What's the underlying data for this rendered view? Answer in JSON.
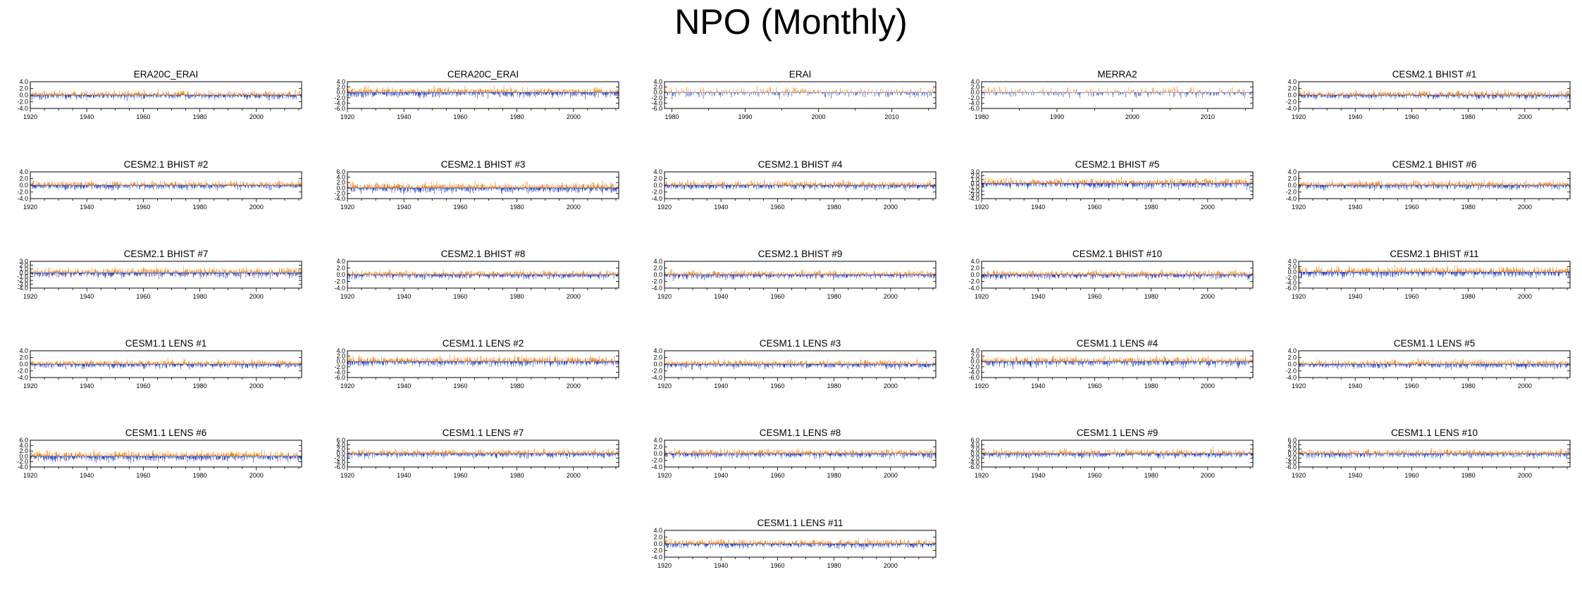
{
  "title": "NPO (Monthly)",
  "colors": {
    "positive": "#f07800",
    "negative": "#1030d0",
    "frame": "#000000",
    "zero_line": "#555555"
  },
  "chart_data": [
    {
      "type": "bar",
      "title": "ERA20C_ERAI",
      "x_range": [
        1920,
        2015
      ],
      "x_ticks": [
        "1920",
        "1940",
        "1960",
        "1980",
        "2000"
      ],
      "ylim": [
        -4,
        4
      ],
      "y_ticks": [
        "4.0",
        "2.0",
        "0.0",
        "-2.0",
        "-4.0"
      ]
    },
    {
      "type": "bar",
      "title": "CERA20C_ERAI",
      "x_range": [
        1920,
        2015
      ],
      "x_ticks": [
        "1920",
        "1940",
        "1960",
        "1980",
        "2000"
      ],
      "ylim": [
        -6,
        4
      ],
      "y_ticks": [
        "4.0",
        "2.0",
        "0.0",
        "-2.0",
        "-4.0",
        "-6.0"
      ]
    },
    {
      "type": "bar",
      "title": "ERAI",
      "x_range": [
        1979,
        2015
      ],
      "x_ticks": [
        "1980",
        "1990",
        "2000",
        "2010"
      ],
      "ylim": [
        -6,
        4
      ],
      "y_ticks": [
        "4.0",
        "2.0",
        "0.0",
        "-2.0",
        "-4.0",
        "-6.0"
      ]
    },
    {
      "type": "bar",
      "title": "MERRA2",
      "x_range": [
        1980,
        2015
      ],
      "x_ticks": [
        "1980",
        "1990",
        "2000",
        "2010"
      ],
      "ylim": [
        -6,
        4
      ],
      "y_ticks": [
        "4.0",
        "2.0",
        "0.0",
        "-2.0",
        "-4.0",
        "-6.0"
      ]
    },
    {
      "type": "bar",
      "title": "CESM2.1 BHIST #1",
      "x_range": [
        1920,
        2015
      ],
      "x_ticks": [
        "1920",
        "1940",
        "1960",
        "1980",
        "2000"
      ],
      "ylim": [
        -4,
        4
      ],
      "y_ticks": [
        "4.0",
        "2.0",
        "0.0",
        "-2.0",
        "-4.0"
      ]
    },
    {
      "type": "bar",
      "title": "CESM2.1 BHIST #2",
      "x_range": [
        1920,
        2015
      ],
      "x_ticks": [
        "1920",
        "1940",
        "1960",
        "1980",
        "2000"
      ],
      "ylim": [
        -4,
        4
      ],
      "y_ticks": [
        "4.0",
        "2.0",
        "0.0",
        "-2.0",
        "-4.0"
      ]
    },
    {
      "type": "bar",
      "title": "CESM2.1 BHIST #3",
      "x_range": [
        1920,
        2015
      ],
      "x_ticks": [
        "1920",
        "1940",
        "1960",
        "1980",
        "2000"
      ],
      "ylim": [
        -4,
        6
      ],
      "y_ticks": [
        "6.0",
        "4.0",
        "2.0",
        "0.0",
        "-2.0",
        "-4.0"
      ]
    },
    {
      "type": "bar",
      "title": "CESM2.1 BHIST #4",
      "x_range": [
        1920,
        2015
      ],
      "x_ticks": [
        "1920",
        "1940",
        "1960",
        "1980",
        "2000"
      ],
      "ylim": [
        -4,
        4
      ],
      "y_ticks": [
        "4.0",
        "2.0",
        "0.0",
        "-2.0",
        "-4.0"
      ]
    },
    {
      "type": "bar",
      "title": "CESM2.1 BHIST #5",
      "x_range": [
        1920,
        2015
      ],
      "x_ticks": [
        "1920",
        "1940",
        "1960",
        "1980",
        "2000"
      ],
      "ylim": [
        -4,
        3
      ],
      "y_ticks": [
        "3.0",
        "2.0",
        "1.0",
        "0.0",
        "-1.0",
        "-2.0",
        "-3.0",
        "-4.0"
      ]
    },
    {
      "type": "bar",
      "title": "CESM2.1 BHIST #6",
      "x_range": [
        1920,
        2015
      ],
      "x_ticks": [
        "1920",
        "1940",
        "1960",
        "1980",
        "2000"
      ],
      "ylim": [
        -4,
        4
      ],
      "y_ticks": [
        "4.0",
        "2.0",
        "0.0",
        "-2.0",
        "-4.0"
      ]
    },
    {
      "type": "bar",
      "title": "CESM2.1 BHIST #7",
      "x_range": [
        1920,
        2015
      ],
      "x_ticks": [
        "1920",
        "1940",
        "1960",
        "1980",
        "2000"
      ],
      "ylim": [
        -4,
        3
      ],
      "y_ticks": [
        "3.0",
        "2.0",
        "1.0",
        "0.0",
        "-1.0",
        "-2.0",
        "-3.0",
        "-4.0"
      ]
    },
    {
      "type": "bar",
      "title": "CESM2.1 BHIST #8",
      "x_range": [
        1920,
        2015
      ],
      "x_ticks": [
        "1920",
        "1940",
        "1960",
        "1980",
        "2000"
      ],
      "ylim": [
        -4,
        4
      ],
      "y_ticks": [
        "4.0",
        "2.0",
        "0.0",
        "-2.0",
        "-4.0"
      ]
    },
    {
      "type": "bar",
      "title": "CESM2.1 BHIST #9",
      "x_range": [
        1920,
        2015
      ],
      "x_ticks": [
        "1920",
        "1940",
        "1960",
        "1980",
        "2000"
      ],
      "ylim": [
        -4,
        4
      ],
      "y_ticks": [
        "4.0",
        "2.0",
        "0.0",
        "-2.0",
        "-4.0"
      ]
    },
    {
      "type": "bar",
      "title": "CESM2.1 BHIST #10",
      "x_range": [
        1920,
        2015
      ],
      "x_ticks": [
        "1920",
        "1940",
        "1960",
        "1980",
        "2000"
      ],
      "ylim": [
        -4,
        4
      ],
      "y_ticks": [
        "4.0",
        "2.0",
        "0.0",
        "-2.0",
        "-4.0"
      ]
    },
    {
      "type": "bar",
      "title": "CESM2.1 BHIST #11",
      "x_range": [
        1920,
        2015
      ],
      "x_ticks": [
        "1920",
        "1940",
        "1960",
        "1980",
        "2000"
      ],
      "ylim": [
        -6,
        4
      ],
      "y_ticks": [
        "4.0",
        "2.0",
        "0.0",
        "-2.0",
        "-4.0",
        "-6.0"
      ]
    },
    {
      "type": "bar",
      "title": "CESM1.1 LENS #1",
      "x_range": [
        1920,
        2015
      ],
      "x_ticks": [
        "1920",
        "1940",
        "1960",
        "1980",
        "2000"
      ],
      "ylim": [
        -4,
        4
      ],
      "y_ticks": [
        "4.0",
        "2.0",
        "0.0",
        "-2.0",
        "-4.0"
      ]
    },
    {
      "type": "bar",
      "title": "CESM1.1 LENS #2",
      "x_range": [
        1920,
        2015
      ],
      "x_ticks": [
        "1920",
        "1940",
        "1960",
        "1980",
        "2000"
      ],
      "ylim": [
        -6,
        4
      ],
      "y_ticks": [
        "4.0",
        "2.0",
        "0.0",
        "-2.0",
        "-4.0",
        "-6.0"
      ]
    },
    {
      "type": "bar",
      "title": "CESM1.1 LENS #3",
      "x_range": [
        1920,
        2015
      ],
      "x_ticks": [
        "1920",
        "1940",
        "1960",
        "1980",
        "2000"
      ],
      "ylim": [
        -4,
        4
      ],
      "y_ticks": [
        "4.0",
        "2.0",
        "0.0",
        "-2.0",
        "-4.0"
      ]
    },
    {
      "type": "bar",
      "title": "CESM1.1 LENS #4",
      "x_range": [
        1920,
        2015
      ],
      "x_ticks": [
        "1920",
        "1940",
        "1960",
        "1980",
        "2000"
      ],
      "ylim": [
        -6,
        4
      ],
      "y_ticks": [
        "4.0",
        "2.0",
        "0.0",
        "-2.0",
        "-4.0",
        "-6.0"
      ]
    },
    {
      "type": "bar",
      "title": "CESM1.1 LENS #5",
      "x_range": [
        1920,
        2015
      ],
      "x_ticks": [
        "1920",
        "1940",
        "1960",
        "1980",
        "2000"
      ],
      "ylim": [
        -4,
        4
      ],
      "y_ticks": [
        "4.0",
        "2.0",
        "0.0",
        "-2.0",
        "-4.0"
      ]
    },
    {
      "type": "bar",
      "title": "CESM1.1 LENS #6",
      "x_range": [
        1920,
        2015
      ],
      "x_ticks": [
        "1920",
        "1940",
        "1960",
        "1980",
        "2000"
      ],
      "ylim": [
        -4,
        6
      ],
      "y_ticks": [
        "6.0",
        "4.0",
        "2.0",
        "0.0",
        "-2.0",
        "-4.0"
      ]
    },
    {
      "type": "bar",
      "title": "CESM1.1 LENS #7",
      "x_range": [
        1920,
        2015
      ],
      "x_ticks": [
        "1920",
        "1940",
        "1960",
        "1980",
        "2000"
      ],
      "ylim": [
        -6,
        6
      ],
      "y_ticks": [
        "6.0",
        "4.0",
        "2.0",
        "0.0",
        "-2.0",
        "-4.0",
        "-6.0"
      ]
    },
    {
      "type": "bar",
      "title": "CESM1.1 LENS #8",
      "x_range": [
        1920,
        2015
      ],
      "x_ticks": [
        "1920",
        "1940",
        "1960",
        "1980",
        "2000"
      ],
      "ylim": [
        -4,
        4
      ],
      "y_ticks": [
        "4.0",
        "2.0",
        "0.0",
        "-2.0",
        "-4.0"
      ]
    },
    {
      "type": "bar",
      "title": "CESM1.1 LENS #9",
      "x_range": [
        1920,
        2015
      ],
      "x_ticks": [
        "1920",
        "1940",
        "1960",
        "1980",
        "2000"
      ],
      "ylim": [
        -6,
        6
      ],
      "y_ticks": [
        "6.0",
        "4.0",
        "2.0",
        "0.0",
        "-2.0",
        "-4.0",
        "-6.0"
      ]
    },
    {
      "type": "bar",
      "title": "CESM1.1 LENS #10",
      "x_range": [
        1920,
        2015
      ],
      "x_ticks": [
        "1920",
        "1940",
        "1960",
        "1980",
        "2000"
      ],
      "ylim": [
        -6,
        6
      ],
      "y_ticks": [
        "6.0",
        "4.0",
        "2.0",
        "0.0",
        "-2.0",
        "-4.0",
        "-6.0"
      ]
    },
    {
      "type": "bar",
      "title": "CESM1.1 LENS #11",
      "x_range": [
        1920,
        2015
      ],
      "x_ticks": [
        "1920",
        "1940",
        "1960",
        "1980",
        "2000"
      ],
      "ylim": [
        -4,
        4
      ],
      "y_ticks": [
        "4.0",
        "2.0",
        "0.0",
        "-2.0",
        "-4.0"
      ]
    }
  ]
}
